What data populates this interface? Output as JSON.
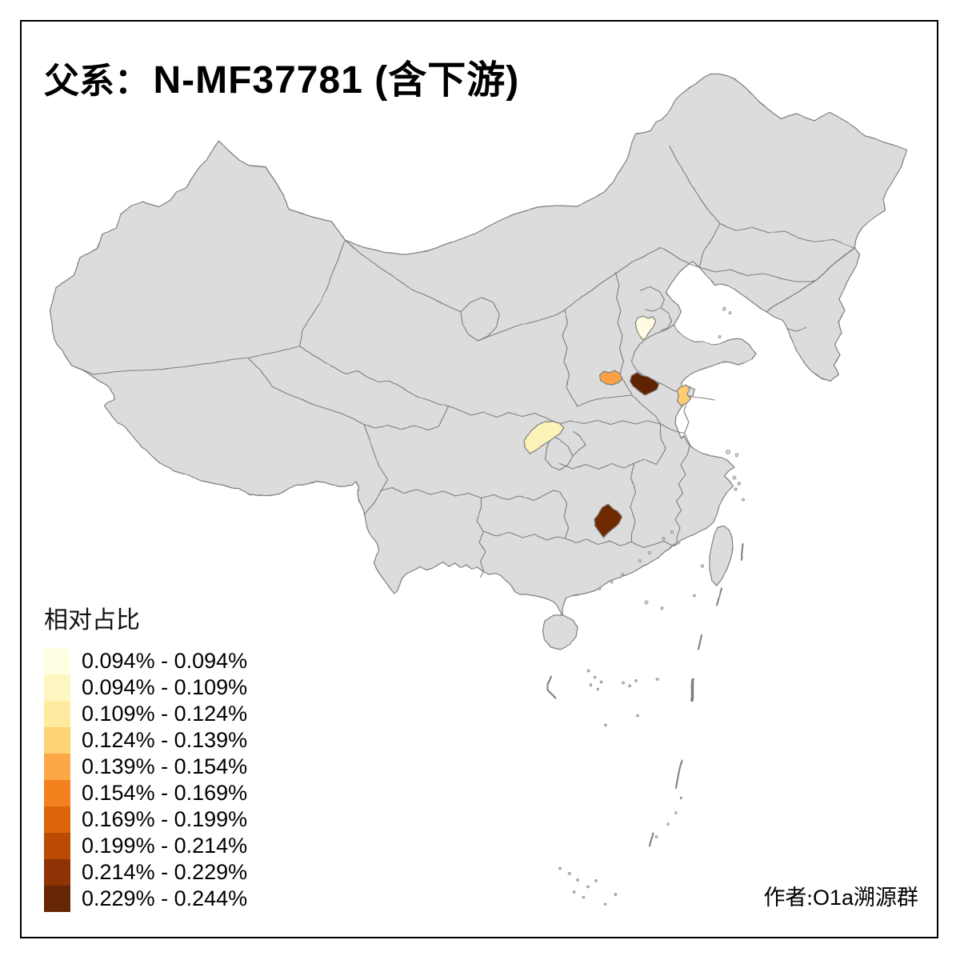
{
  "title": {
    "prefix_zh": "父系：",
    "value": "N-MF37781 (含下游)"
  },
  "legend": {
    "title": "相对占比",
    "classes": [
      {
        "label": "0.094% - 0.094%",
        "color": "#FFFFE3"
      },
      {
        "label": "0.094% - 0.109%",
        "color": "#FFF7C1"
      },
      {
        "label": "0.109% - 0.124%",
        "color": "#FEEB9F"
      },
      {
        "label": "0.124% - 0.139%",
        "color": "#FED173"
      },
      {
        "label": "0.139% - 0.154%",
        "color": "#FDA847"
      },
      {
        "label": "0.154% - 0.169%",
        "color": "#F3821E"
      },
      {
        "label": "0.169% - 0.199%",
        "color": "#DC640B"
      },
      {
        "label": "0.199% - 0.214%",
        "color": "#BB4A03"
      },
      {
        "label": "0.214% - 0.229%",
        "color": "#8E3303"
      },
      {
        "label": "0.229% - 0.244%",
        "color": "#662506"
      }
    ]
  },
  "attribution": {
    "prefix_zh": "作者:",
    "value_latin": "O1a",
    "value_zh": "溯源群"
  },
  "map": {
    "land_color": "#DCDCDC",
    "border_color": "#7E7E7E",
    "sea_color": "#FFFFFF",
    "frame_color": "#000000",
    "regions": [
      {
        "id": "hebei-region",
        "color": "#FFFBE1"
      },
      {
        "id": "sichuan-northeast-region",
        "color": "#FBF2B8"
      },
      {
        "id": "north-jiangsu-region",
        "color": "#FCCB72"
      },
      {
        "id": "west-henan-region",
        "color": "#F9A245"
      },
      {
        "id": "central-hunan-region",
        "color": "#6F2B06"
      },
      {
        "id": "central-henan-region",
        "color": "#602406"
      }
    ]
  }
}
